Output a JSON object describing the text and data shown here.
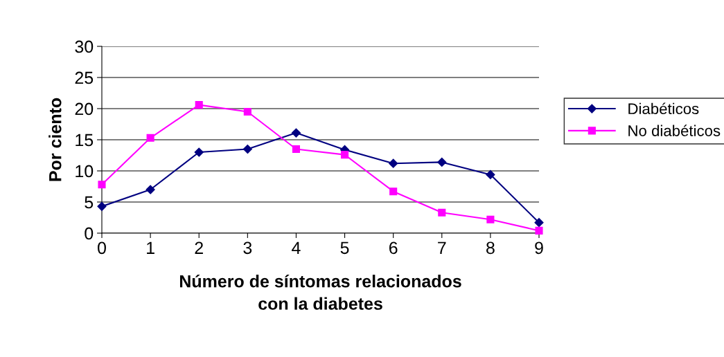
{
  "chart_data": {
    "type": "line",
    "xlabel": "Número de síntomas relacionados\ncon la diabetes",
    "ylabel": "Por ciento",
    "categories": [
      "0",
      "1",
      "2",
      "3",
      "4",
      "5",
      "6",
      "7",
      "8",
      "9"
    ],
    "series": [
      {
        "name": "Diabéticos",
        "color": "#000080",
        "marker": "diamond",
        "values": [
          4.3,
          7.0,
          13.0,
          13.5,
          16.1,
          13.4,
          11.2,
          11.4,
          9.4,
          1.7
        ]
      },
      {
        "name": "No diabéticos",
        "color": "#ff00ff",
        "marker": "square",
        "values": [
          7.8,
          15.3,
          20.6,
          19.5,
          13.5,
          12.6,
          6.7,
          3.3,
          2.2,
          0.4
        ]
      }
    ],
    "ylim": [
      0,
      30
    ],
    "yticks": [
      0,
      5,
      10,
      15,
      20,
      25,
      30
    ],
    "grid": "y",
    "legend": "right",
    "line_style": "solid"
  }
}
